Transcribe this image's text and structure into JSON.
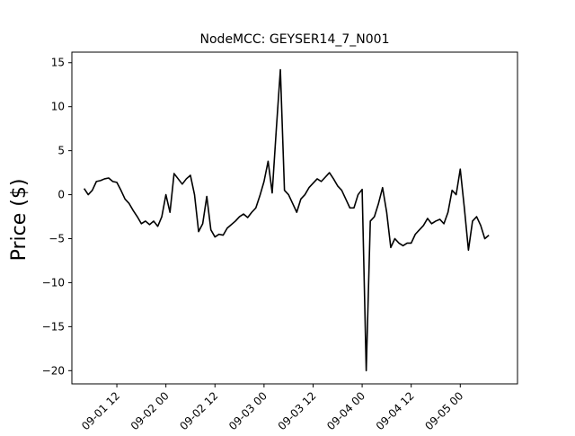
{
  "chart_data": {
    "type": "line",
    "title": "NodeMCC: GEYSER14_7_N001",
    "ylabel": "Price ($)",
    "xlabel": "",
    "xlim": [
      "2020-09-01 01:00",
      "2020-09-05 14:00"
    ],
    "ylim": [
      -21.5,
      16.2
    ],
    "x_ticks": [
      {
        "t": "2020-09-01 12:00",
        "label": "09-01 12"
      },
      {
        "t": "2020-09-02 00:00",
        "label": "09-02 00"
      },
      {
        "t": "2020-09-02 12:00",
        "label": "09-02 12"
      },
      {
        "t": "2020-09-03 00:00",
        "label": "09-03 00"
      },
      {
        "t": "2020-09-03 12:00",
        "label": "09-03 12"
      },
      {
        "t": "2020-09-04 00:00",
        "label": "09-04 00"
      },
      {
        "t": "2020-09-04 12:00",
        "label": "09-04 12"
      },
      {
        "t": "2020-09-05 00:00",
        "label": "09-05 00"
      }
    ],
    "y_ticks": [
      15,
      10,
      5,
      0,
      -5,
      -10,
      -15,
      -20
    ],
    "y_tick_labels": [
      "15",
      "10",
      "5",
      "0",
      "−5",
      "−10",
      "−15",
      "−20"
    ],
    "line_color": "#000000",
    "grid": false,
    "series": [
      {
        "x": [
          "2020-09-01 04:00",
          "2020-09-01 05:00",
          "2020-09-01 06:00",
          "2020-09-01 07:00",
          "2020-09-01 08:00",
          "2020-09-01 09:00",
          "2020-09-01 10:00",
          "2020-09-01 11:00",
          "2020-09-01 12:00",
          "2020-09-01 13:00",
          "2020-09-01 14:00",
          "2020-09-01 15:00",
          "2020-09-01 16:00",
          "2020-09-01 17:00",
          "2020-09-01 18:00",
          "2020-09-01 19:00",
          "2020-09-01 20:00",
          "2020-09-01 21:00",
          "2020-09-01 22:00",
          "2020-09-01 23:00",
          "2020-09-02 00:00",
          "2020-09-02 01:00",
          "2020-09-02 02:00",
          "2020-09-02 03:00",
          "2020-09-02 04:00",
          "2020-09-02 05:00",
          "2020-09-02 06:00",
          "2020-09-02 07:00",
          "2020-09-02 08:00",
          "2020-09-02 09:00",
          "2020-09-02 10:00",
          "2020-09-02 11:00",
          "2020-09-02 12:00",
          "2020-09-02 13:00",
          "2020-09-02 14:00",
          "2020-09-02 15:00",
          "2020-09-02 16:00",
          "2020-09-02 17:00",
          "2020-09-02 18:00",
          "2020-09-02 19:00",
          "2020-09-02 20:00",
          "2020-09-02 21:00",
          "2020-09-02 22:00",
          "2020-09-02 23:00",
          "2020-09-03 00:00",
          "2020-09-03 01:00",
          "2020-09-03 02:00",
          "2020-09-03 03:00",
          "2020-09-03 04:00",
          "2020-09-03 05:00",
          "2020-09-03 06:00",
          "2020-09-03 07:00",
          "2020-09-03 08:00",
          "2020-09-03 09:00",
          "2020-09-03 10:00",
          "2020-09-03 11:00",
          "2020-09-03 12:00",
          "2020-09-03 13:00",
          "2020-09-03 14:00",
          "2020-09-03 15:00",
          "2020-09-03 16:00",
          "2020-09-03 17:00",
          "2020-09-03 18:00",
          "2020-09-03 19:00",
          "2020-09-03 20:00",
          "2020-09-03 21:00",
          "2020-09-03 22:00",
          "2020-09-03 23:00",
          "2020-09-04 00:00",
          "2020-09-04 01:00",
          "2020-09-04 02:00",
          "2020-09-04 03:00",
          "2020-09-04 04:00",
          "2020-09-04 05:00",
          "2020-09-04 06:00",
          "2020-09-04 07:00",
          "2020-09-04 08:00",
          "2020-09-04 09:00",
          "2020-09-04 10:00",
          "2020-09-04 11:00",
          "2020-09-04 12:00",
          "2020-09-04 13:00",
          "2020-09-04 14:00",
          "2020-09-04 15:00",
          "2020-09-04 16:00",
          "2020-09-04 17:00",
          "2020-09-04 18:00",
          "2020-09-04 19:00",
          "2020-09-04 20:00",
          "2020-09-04 21:00",
          "2020-09-04 22:00",
          "2020-09-04 23:00",
          "2020-09-05 00:00",
          "2020-09-05 01:00",
          "2020-09-05 02:00",
          "2020-09-05 03:00",
          "2020-09-05 04:00",
          "2020-09-05 05:00",
          "2020-09-05 06:00",
          "2020-09-05 07:00"
        ],
        "y": [
          0.7,
          0.0,
          0.5,
          1.5,
          1.6,
          1.8,
          1.9,
          1.5,
          1.4,
          0.5,
          -0.5,
          -1.0,
          -1.8,
          -2.5,
          -3.3,
          -3.0,
          -3.4,
          -3.0,
          -3.6,
          -2.5,
          0.0,
          -2.0,
          2.4,
          1.8,
          1.2,
          1.8,
          2.2,
          0.0,
          -4.2,
          -3.3,
          -0.2,
          -4.0,
          -4.8,
          -4.5,
          -4.6,
          -3.8,
          -3.4,
          -3.0,
          -2.5,
          -2.2,
          -2.6,
          -2.0,
          -1.5,
          -0.1,
          1.5,
          3.8,
          0.2,
          7.4,
          14.2,
          0.5,
          0.0,
          -1.0,
          -2.0,
          -0.5,
          0.0,
          0.8,
          1.3,
          1.8,
          1.5,
          2.0,
          2.5,
          1.8,
          1.0,
          0.5,
          -0.5,
          -1.5,
          -1.5,
          0.0,
          0.6,
          -20.0,
          -3.0,
          -2.5,
          -1.0,
          0.8,
          -2.0,
          -6.0,
          -5.0,
          -5.5,
          -5.8,
          -5.5,
          -5.5,
          -4.5,
          -4.0,
          -3.5,
          -2.7,
          -3.3,
          -3.0,
          -2.8,
          -3.3,
          -2.0,
          0.5,
          0.0,
          2.9,
          -1.5,
          -6.3,
          -3.0,
          -2.5,
          -3.5,
          -5.0,
          -4.6
        ]
      }
    ]
  }
}
